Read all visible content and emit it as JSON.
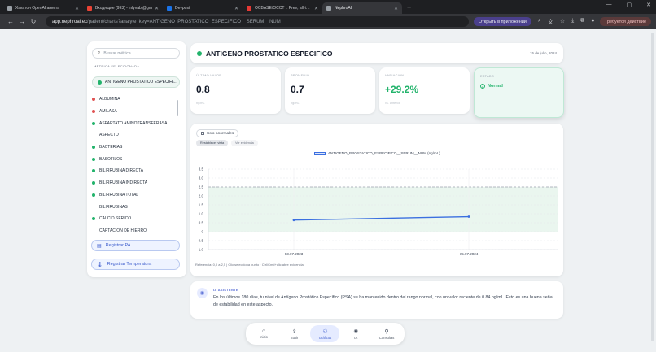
{
  "browser": {
    "tabs": [
      {
        "label": "Хакатон OpenAI анкета",
        "color": "#9aa0a6",
        "active": false
      },
      {
        "label": "Входящие (993) - jnlyvabi@gm",
        "color": "#ea4335",
        "active": false
      },
      {
        "label": "Devpost",
        "color": "#1a73e8",
        "active": false
      },
      {
        "label": "OCBASE/OCCT :: Free, all-in-one",
        "color": "#e53935",
        "active": false
      },
      {
        "label": "NephroAI",
        "color": "#9aa0a6",
        "active": true
      }
    ],
    "url_host": "app.nephroai.ec",
    "url_path": "/patient/charts?analyte_key=ANTIGENO_PROSTATICO_ESPECIFICO__SERUM__NUM",
    "open_in_app": "Открыть в приложении",
    "update_required": "Требуется действие"
  },
  "sidebar": {
    "search_placeholder": "Buscar métrica...",
    "selected_label": "MÉTRICA SELECCIONADA",
    "selected_metric": "ANTIGENO PROSTATICO ESPECIFI...",
    "metrics": [
      {
        "name": "ALBUMINA",
        "color": "#e05252"
      },
      {
        "name": "AMILASA",
        "color": "#e05252"
      },
      {
        "name": "ASPARTATO AMINOTRANSFERASA",
        "color": "#22b36b"
      },
      {
        "name": "ASPECTO",
        "color": ""
      },
      {
        "name": "BACTERIAS",
        "color": "#22b36b"
      },
      {
        "name": "BASOFILOS",
        "color": "#22b36b"
      },
      {
        "name": "BILIRRUBINA DIRECTA",
        "color": "#22b36b"
      },
      {
        "name": "BILIRRUBINA INDIRECTA",
        "color": "#22b36b"
      },
      {
        "name": "BILIRRUBINA TOTAL",
        "color": "#22b36b"
      },
      {
        "name": "BILIRRUBINAS",
        "color": ""
      },
      {
        "name": "CALCIO SERICO",
        "color": "#22b36b"
      },
      {
        "name": "CAPTACION DE HIERRO",
        "color": ""
      }
    ],
    "register_pa": "Registrar PA",
    "register_temp": "Registrar Temperatura"
  },
  "header": {
    "title": "ANTIGENO PROSTATICO ESPECIFICO",
    "date": "15 de julio, 2024"
  },
  "stats": {
    "last_label": "ÚLTIMO VALOR",
    "last_value": "0.8",
    "last_unit": "ng/mL",
    "avg_label": "PROMEDIO",
    "avg_value": "0.7",
    "avg_unit": "ng/mL",
    "var_label": "VARIACIÓN",
    "var_value": "+29.2%",
    "var_sub": "vs. anterior",
    "status_label": "ESTADO",
    "status_value": "Normal"
  },
  "chart_controls": {
    "only_abnormal": "Solo anormales",
    "reset_view": "Restablecer vista",
    "view_evidence": "Ver evidencia",
    "reference": "Referencia: 0,0 a 2,5 | Clic selecciona punto · Ctrl/Cmd+clic abre evidencia"
  },
  "chart_data": {
    "type": "line",
    "series": [
      {
        "name": "ANTIGENO_PROSTATICO_ESPECIFICO__SERUM__NUM (ng/mL)",
        "values": [
          0.65,
          0.84
        ]
      }
    ],
    "categories": [
      "03.07.2023",
      "15.07.2024"
    ],
    "ylim": [
      -1.0,
      3.5
    ],
    "yticks": [
      "3.5",
      "3.0",
      "2.5",
      "2.0",
      "1.5",
      "1.0",
      "0.5",
      "0",
      "-0.5",
      "-1.0"
    ],
    "reference_range": [
      0,
      2.5
    ],
    "grid": true,
    "legend": "top-center",
    "line_color": "#3b6fe0",
    "band_color": "#eaf6ef"
  },
  "ai": {
    "title": "IA ASISTENTE",
    "text": "En los últimos 180 días, tu nivel de Antígeno Prostático Específico (PSA) se ha mantenido dentro del rango normal, con un valor reciente de 0.84 ng/mL. Esto es una buena señal de estabilidad en este aspecto."
  },
  "bottom_nav": [
    {
      "label": "Inicio",
      "icon": "home-icon",
      "glyph": "⌂",
      "active": false
    },
    {
      "label": "Subir",
      "icon": "upload-icon",
      "glyph": "⇪",
      "active": false
    },
    {
      "label": "Gráficos",
      "icon": "chart-icon",
      "glyph": "⚇",
      "active": true
    },
    {
      "label": "IA",
      "icon": "ai-icon",
      "glyph": "✺",
      "active": false
    },
    {
      "label": "Consultas",
      "icon": "consult-icon",
      "glyph": "⚲",
      "active": false
    }
  ]
}
